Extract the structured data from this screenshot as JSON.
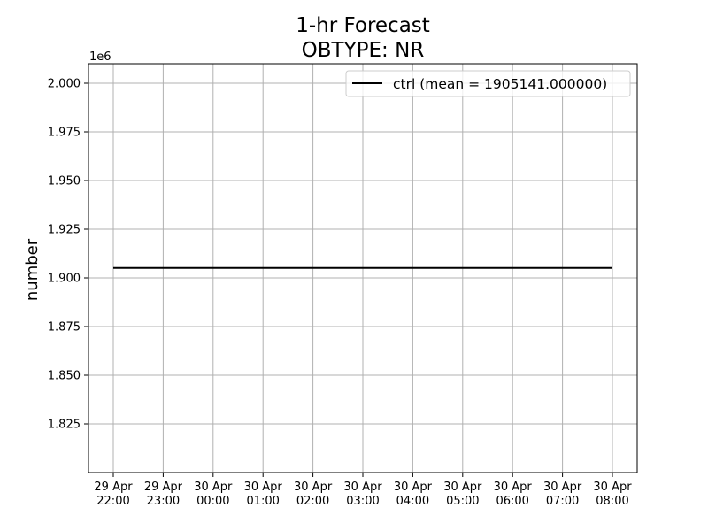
{
  "chart_data": {
    "type": "line",
    "title": "1-hr Forecast",
    "subtitle": "OBTYPE: NR",
    "xlabel": "",
    "ylabel": "number",
    "y_offset_label": "1e6",
    "categories": [
      [
        "29 Apr",
        "22:00"
      ],
      [
        "29 Apr",
        "23:00"
      ],
      [
        "30 Apr",
        "00:00"
      ],
      [
        "30 Apr",
        "01:00"
      ],
      [
        "30 Apr",
        "02:00"
      ],
      [
        "30 Apr",
        "03:00"
      ],
      [
        "30 Apr",
        "04:00"
      ],
      [
        "30 Apr",
        "05:00"
      ],
      [
        "30 Apr",
        "06:00"
      ],
      [
        "30 Apr",
        "07:00"
      ],
      [
        "30 Apr",
        "08:00"
      ]
    ],
    "series": [
      {
        "name": "ctrl (mean = 1905141.000000)",
        "color": "#000000",
        "values": [
          1.905141,
          1.905141,
          1.905141,
          1.905141,
          1.905141,
          1.905141,
          1.905141,
          1.905141,
          1.905141,
          1.905141,
          1.905141
        ]
      }
    ],
    "ylim": [
      1.8,
      2.01
    ],
    "yticks": [
      1.825,
      1.85,
      1.875,
      1.9,
      1.925,
      1.95,
      1.975,
      2.0
    ],
    "ytick_labels": [
      "1.825",
      "1.850",
      "1.875",
      "1.900",
      "1.925",
      "1.950",
      "1.975",
      "2.000"
    ],
    "grid": true,
    "legend_position": "top-right"
  }
}
